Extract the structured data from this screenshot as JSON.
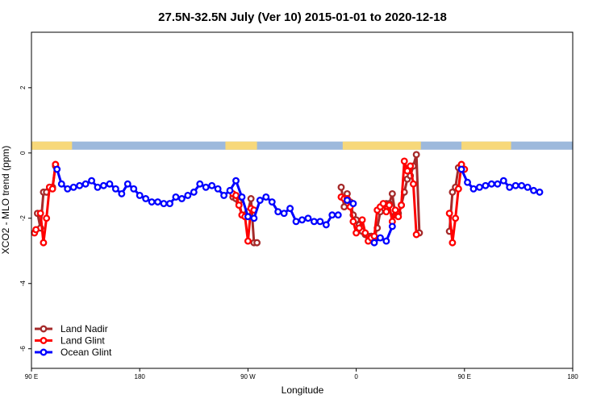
{
  "chart_data": {
    "type": "line",
    "title": "27.5N-32.5N July (Ver 10)   2015-01-01 to 2020-12-18",
    "xlabel": "Longitude",
    "ylabel": "XCO2 - MLO trend (ppm)",
    "xlim": [
      -90,
      270
    ],
    "ylim": [
      -6.6,
      3.7
    ],
    "x_ticks": [
      {
        "value": -90,
        "label": "90 E"
      },
      {
        "value": -18,
        "label": "180"
      },
      {
        "value": 54,
        "label": "90 W"
      },
      {
        "value": 126,
        "label": "0"
      },
      {
        "value": 198,
        "label": "90 E"
      },
      {
        "value": 270,
        "label": "180"
      }
    ],
    "y_ticks": [
      {
        "value": 2,
        "label": "2"
      },
      {
        "value": 0,
        "label": "0"
      },
      {
        "value": -2,
        "label": "-2"
      },
      {
        "value": -4,
        "label": "-4"
      },
      {
        "value": -6,
        "label": "-6"
      }
    ],
    "surface_band": {
      "y_range": [
        0.1,
        0.35
      ],
      "colors": {
        "land": "#f7d87a",
        "ocean": "#9db9dc"
      },
      "land_segments": [
        [
          -90,
          -63
        ],
        [
          39,
          60
        ],
        [
          117,
          169
        ],
        [
          196,
          229
        ]
      ]
    },
    "legend": {
      "position": "bottom-left"
    },
    "series": [
      {
        "name": "Land Nadir",
        "color": "#a52a2a",
        "segments": [
          [
            [
              -86,
              -1.85
            ],
            [
              -84,
              -2.3
            ],
            [
              -82,
              -1.2
            ],
            [
              -80,
              -1.2
            ],
            [
              -78,
              -1.05
            ],
            [
              -76,
              -1.05
            ],
            [
              -74,
              -0.4
            ]
          ],
          [
            [
              44,
              -1.35
            ],
            [
              46,
              -1.4
            ],
            [
              48,
              -1.5
            ],
            [
              50,
              -1.9
            ],
            [
              52,
              -1.9
            ],
            [
              54,
              -1.8
            ],
            [
              56,
              -1.4
            ],
            [
              58,
              -2.75
            ],
            [
              60,
              -2.75
            ]
          ],
          [
            [
              116,
              -1.05
            ],
            [
              118,
              -1.65
            ],
            [
              120,
              -1.25
            ],
            [
              122,
              -1.5
            ],
            [
              124,
              -1.9
            ],
            [
              126,
              -2.05
            ],
            [
              128,
              -2.2
            ],
            [
              130,
              -2.4
            ],
            [
              132,
              -2.5
            ],
            [
              134,
              -2.55
            ],
            [
              136,
              -2.55
            ],
            [
              138,
              -2.6
            ],
            [
              140,
              -2.3
            ],
            [
              142,
              -1.8
            ],
            [
              144,
              -1.6
            ],
            [
              146,
              -1.55
            ],
            [
              148,
              -1.55
            ],
            [
              150,
              -1.25
            ],
            [
              152,
              -1.9
            ],
            [
              154,
              -1.85
            ],
            [
              156,
              -1.6
            ],
            [
              158,
              -1.2
            ],
            [
              160,
              -0.8
            ],
            [
              162,
              -0.7
            ],
            [
              164,
              -0.4
            ],
            [
              166,
              -0.05
            ],
            [
              168,
              -2.45
            ]
          ],
          [
            [
              188,
              -2.4
            ],
            [
              190,
              -1.2
            ],
            [
              192,
              -1.05
            ],
            [
              194,
              -0.45
            ],
            [
              196,
              -0.4
            ]
          ]
        ]
      },
      {
        "name": "Land Glint",
        "color": "#ff0000",
        "segments": [
          [
            [
              -88,
              -2.45
            ],
            [
              -87,
              -2.35
            ]
          ],
          [
            [
              -84,
              -1.85
            ],
            [
              -82,
              -2.75
            ],
            [
              -80,
              -2.0
            ],
            [
              -78,
              -1.05
            ],
            [
              -76,
              -1.1
            ],
            [
              -74,
              -0.35
            ]
          ],
          [
            [
              44,
              -1.25
            ],
            [
              46,
              -1.3
            ],
            [
              48,
              -1.6
            ],
            [
              50,
              -1.9
            ],
            [
              52,
              -1.95
            ],
            [
              54,
              -2.7
            ],
            [
              56,
              -1.7
            ],
            [
              58,
              -1.75
            ]
          ],
          [
            [
              116,
              -1.35
            ],
            [
              118,
              -1.4
            ],
            [
              120,
              -1.4
            ],
            [
              122,
              -1.65
            ],
            [
              124,
              -2.1
            ],
            [
              126,
              -2.45
            ],
            [
              128,
              -2.3
            ],
            [
              130,
              -2.05
            ],
            [
              132,
              -2.45
            ],
            [
              134,
              -2.7
            ],
            [
              136,
              -2.6
            ],
            [
              138,
              -2.55
            ],
            [
              140,
              -1.75
            ],
            [
              142,
              -1.65
            ],
            [
              144,
              -1.55
            ],
            [
              146,
              -1.8
            ],
            [
              148,
              -1.6
            ],
            [
              150,
              -2.1
            ],
            [
              152,
              -1.75
            ],
            [
              154,
              -1.95
            ],
            [
              156,
              -1.6
            ],
            [
              158,
              -0.25
            ],
            [
              160,
              -0.55
            ],
            [
              162,
              -0.4
            ],
            [
              164,
              -0.95
            ],
            [
              166,
              -2.5
            ]
          ],
          [
            [
              188,
              -1.85
            ],
            [
              190,
              -2.75
            ],
            [
              192,
              -2.0
            ],
            [
              194,
              -1.1
            ],
            [
              196,
              -0.35
            ],
            [
              198,
              -0.5
            ]
          ]
        ]
      },
      {
        "name": "Ocean Glint",
        "color": "#0000ff",
        "segments": [
          [
            [
              -73,
              -0.5
            ],
            [
              -70,
              -0.95
            ],
            [
              -66,
              -1.1
            ],
            [
              -62,
              -1.05
            ],
            [
              -58,
              -1.0
            ],
            [
              -54,
              -0.95
            ],
            [
              -50,
              -0.85
            ],
            [
              -46,
              -1.05
            ],
            [
              -42,
              -1.0
            ],
            [
              -38,
              -0.95
            ],
            [
              -34,
              -1.1
            ],
            [
              -30,
              -1.25
            ],
            [
              -26,
              -0.95
            ],
            [
              -22,
              -1.1
            ],
            [
              -18,
              -1.3
            ],
            [
              -14,
              -1.4
            ],
            [
              -10,
              -1.5
            ],
            [
              -6,
              -1.5
            ],
            [
              -2,
              -1.55
            ],
            [
              2,
              -1.55
            ],
            [
              6,
              -1.35
            ],
            [
              10,
              -1.4
            ],
            [
              14,
              -1.3
            ],
            [
              18,
              -1.2
            ],
            [
              22,
              -0.95
            ],
            [
              26,
              -1.05
            ],
            [
              30,
              -1.0
            ],
            [
              34,
              -1.1
            ],
            [
              38,
              -1.3
            ],
            [
              42,
              -1.15
            ],
            [
              46,
              -0.85
            ],
            [
              50,
              -1.35
            ],
            [
              54,
              -1.95
            ],
            [
              58,
              -2.0
            ],
            [
              62,
              -1.45
            ],
            [
              66,
              -1.35
            ],
            [
              70,
              -1.5
            ],
            [
              74,
              -1.8
            ],
            [
              78,
              -1.85
            ],
            [
              82,
              -1.7
            ],
            [
              86,
              -2.1
            ],
            [
              90,
              -2.05
            ],
            [
              94,
              -2.0
            ],
            [
              98,
              -2.1
            ],
            [
              102,
              -2.1
            ],
            [
              106,
              -2.2
            ],
            [
              110,
              -1.9
            ],
            [
              114,
              -1.9
            ]
          ],
          [
            [
              120,
              -1.45
            ],
            [
              124,
              -1.55
            ]
          ],
          [
            [
              138,
              -2.75
            ],
            [
              142,
              -2.6
            ],
            [
              146,
              -2.7
            ],
            [
              150,
              -2.25
            ]
          ],
          [
            [
              196,
              -0.5
            ],
            [
              200,
              -0.9
            ],
            [
              204,
              -1.1
            ],
            [
              208,
              -1.05
            ],
            [
              212,
              -1.0
            ],
            [
              216,
              -0.95
            ],
            [
              220,
              -0.95
            ],
            [
              224,
              -0.85
            ],
            [
              228,
              -1.05
            ],
            [
              232,
              -1.0
            ],
            [
              236,
              -1.0
            ],
            [
              240,
              -1.05
            ],
            [
              244,
              -1.15
            ],
            [
              248,
              -1.2
            ]
          ]
        ]
      }
    ]
  }
}
